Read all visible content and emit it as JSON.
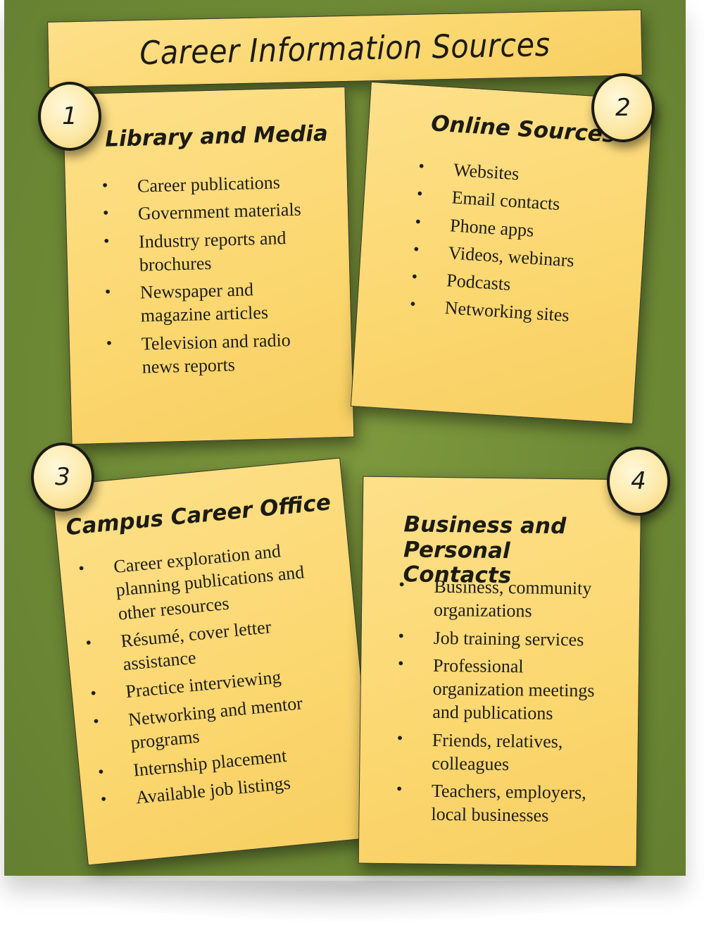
{
  "title": "Career Information Sources",
  "cards": [
    {
      "number": "1",
      "heading": "Library and Media",
      "items": [
        "Career publications",
        "Government materials",
        "Industry reports and brochures",
        "Newspaper and magazine articles",
        "Television and radio news reports"
      ]
    },
    {
      "number": "2",
      "heading": "Online Sources",
      "items": [
        "Websites",
        "Email contacts",
        "Phone apps",
        "Videos, webinars",
        "Podcasts",
        "Networking sites"
      ]
    },
    {
      "number": "3",
      "heading": "Campus Career Office",
      "items": [
        "Career exploration and planning publications and other resources",
        "Résumé, cover letter assistance",
        "Practice interviewing",
        "Networking and mentor programs",
        "Internship placement",
        "Available job listings"
      ]
    },
    {
      "number": "4",
      "heading": "Business and Personal Contacts",
      "items": [
        "Business, community organizations",
        "Job training services",
        "Professional organization meetings and publications",
        "Friends, relatives, colleagues",
        "Teachers, employers, local businesses"
      ]
    }
  ],
  "colors": {
    "board": "#6f8a36",
    "note": "#fbd76f",
    "ink": "#1b1b14"
  }
}
